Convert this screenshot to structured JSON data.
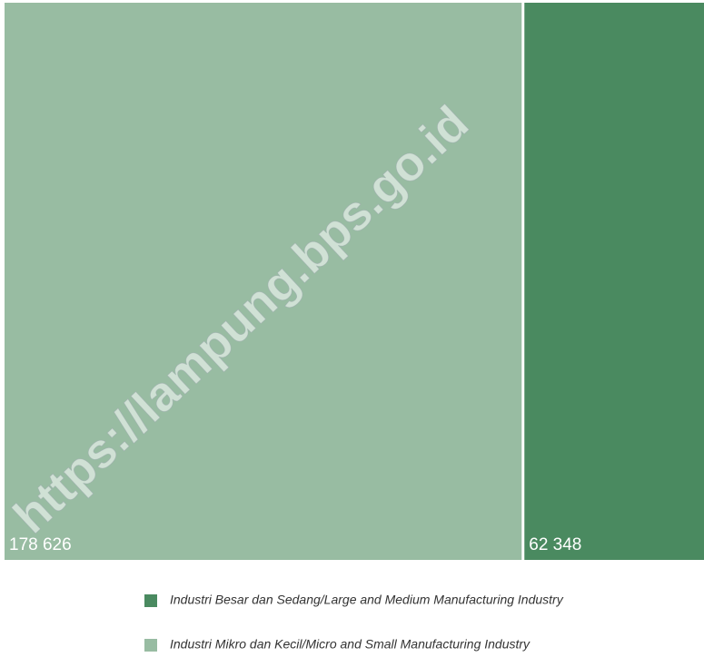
{
  "chart_data": {
    "type": "treemap",
    "categories": [
      "Industri Besar dan Sedang/Large and Medium Manufacturing Industry",
      "Industri Mikro dan Kecil/Micro and Small Manufacturing Industry"
    ],
    "values": [
      62348,
      178626
    ],
    "value_labels": [
      "62 348",
      "178 626"
    ],
    "colors": [
      "#4a8a60",
      "#98bca2"
    ],
    "watermark": "https://lampung.bps.go.id"
  }
}
